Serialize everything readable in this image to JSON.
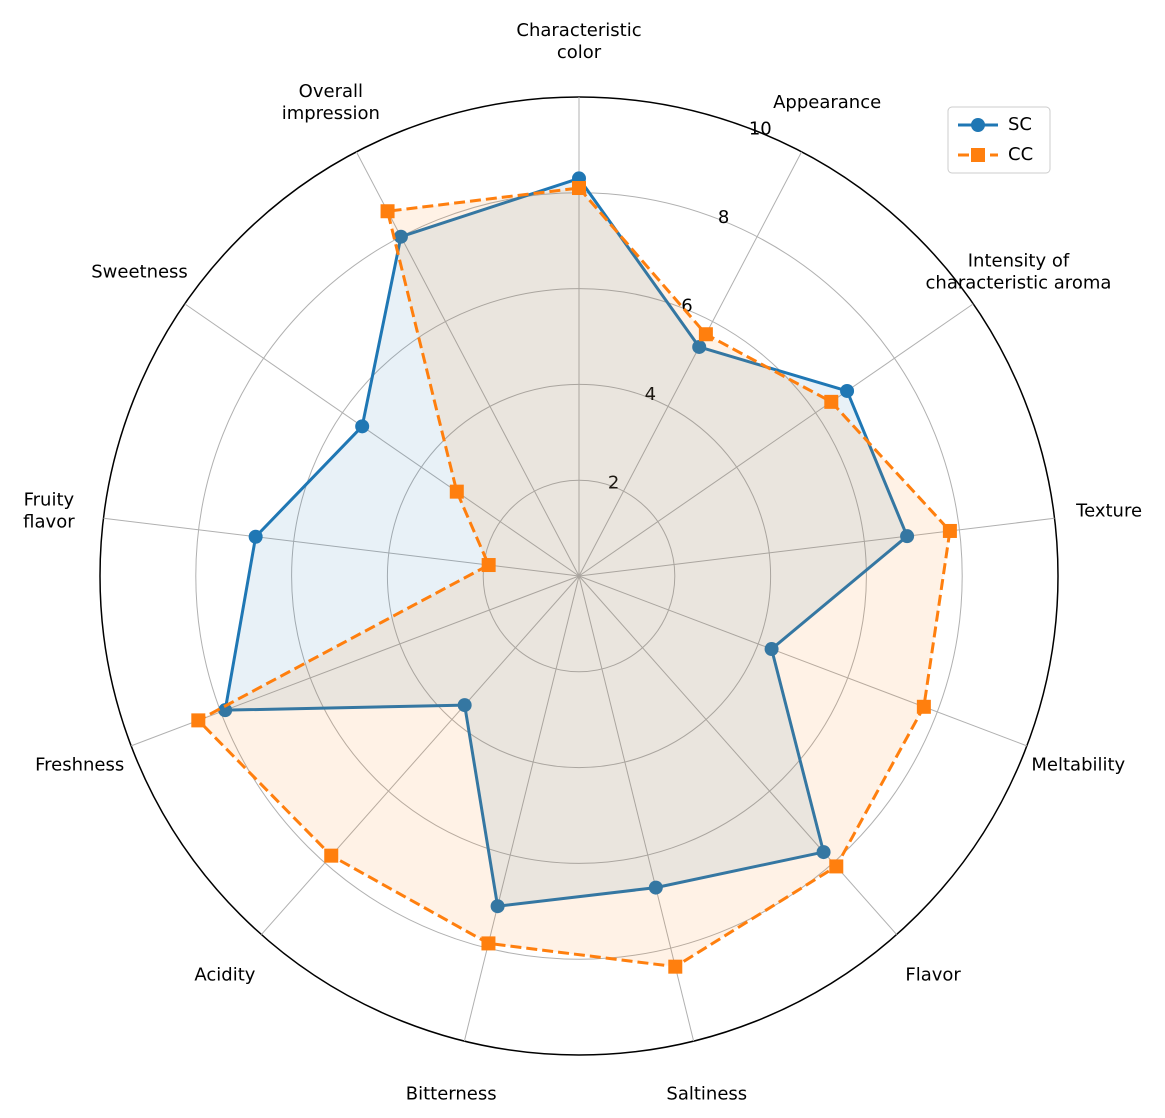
{
  "chart_data": {
    "type": "radar",
    "categories": [
      "Characteristic\ncolor",
      "Appearance",
      "Intensity of\ncharacteristic aroma",
      "Texture",
      "Meltability",
      "Flavor",
      "Saltiness",
      "Bitterness",
      "Acidity",
      "Freshness",
      "Fruity\nflavor",
      "Sweetness",
      "Overall\nimpression"
    ],
    "series": [
      {
        "name": "SC",
        "color": "#1f77b4",
        "marker": "circle",
        "dash": "solid",
        "values": [
          8.3,
          5.4,
          6.8,
          6.9,
          4.3,
          7.7,
          6.7,
          7.1,
          3.6,
          7.9,
          6.8,
          5.5,
          8.0
        ]
      },
      {
        "name": "CC",
        "color": "#ff7f0e",
        "marker": "square",
        "dash": "dashed",
        "values": [
          8.1,
          5.7,
          6.4,
          7.8,
          7.7,
          8.1,
          8.4,
          7.9,
          7.8,
          8.5,
          1.9,
          3.1,
          8.6
        ]
      }
    ],
    "ylim": [
      0,
      10
    ],
    "yticks": [
      2,
      4,
      6,
      8,
      10
    ],
    "grid": true,
    "legend": "upper right"
  }
}
